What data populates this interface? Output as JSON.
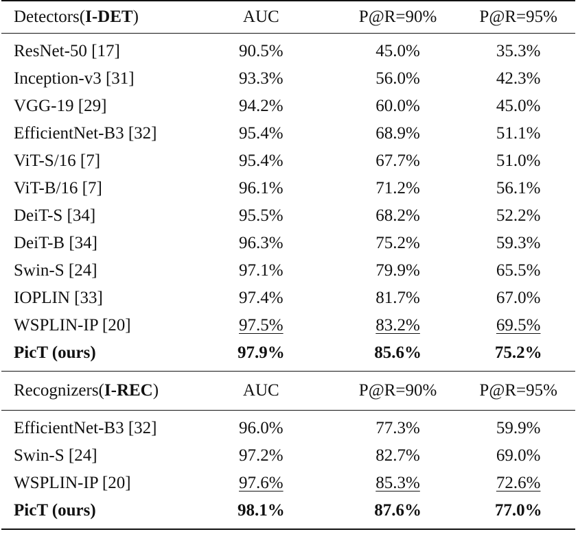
{
  "det": {
    "header": {
      "name_prefix": "Detectors(",
      "name_bold": "I-DET",
      "name_suffix": ")",
      "auc": "AUC",
      "p90": "P@R=90%",
      "p95": "P@R=95%"
    },
    "rows": [
      {
        "name": "ResNet-50 [17]",
        "auc": "90.5%",
        "p90": "45.0%",
        "p95": "35.3%"
      },
      {
        "name": "Inception-v3 [31]",
        "auc": "93.3%",
        "p90": "56.0%",
        "p95": "42.3%"
      },
      {
        "name": "VGG-19 [29]",
        "auc": "94.2%",
        "p90": "60.0%",
        "p95": "45.0%"
      },
      {
        "name": "EfficientNet-B3 [32]",
        "auc": "95.4%",
        "p90": "68.9%",
        "p95": "51.1%"
      },
      {
        "name": "ViT-S/16 [7]",
        "auc": "95.4%",
        "p90": "67.7%",
        "p95": "51.0%"
      },
      {
        "name": "ViT-B/16 [7]",
        "auc": "96.1%",
        "p90": "71.2%",
        "p95": "56.1%"
      },
      {
        "name": "DeiT-S [34]",
        "auc": "95.5%",
        "p90": "68.2%",
        "p95": "52.2%"
      },
      {
        "name": "DeiT-B [34]",
        "auc": "96.3%",
        "p90": "75.2%",
        "p95": "59.3%"
      },
      {
        "name": "Swin-S [24]",
        "auc": "97.1%",
        "p90": "79.9%",
        "p95": "65.5%"
      },
      {
        "name": "IOPLIN [33]",
        "auc": "97.4%",
        "p90": "81.7%",
        "p95": "67.0%"
      },
      {
        "name": "WSPLIN-IP [20]",
        "auc": "97.5%",
        "p90": "83.2%",
        "p95": "69.5%"
      },
      {
        "name": "PicT (ours)",
        "auc": "97.9%",
        "p90": "85.6%",
        "p95": "75.2%"
      }
    ]
  },
  "rec": {
    "header": {
      "name_prefix": "Recognizers(",
      "name_bold": "I-REC",
      "name_suffix": ")",
      "auc": "AUC",
      "p90": "P@R=90%",
      "p95": "P@R=95%"
    },
    "rows": [
      {
        "name": "EfficientNet-B3 [32]",
        "auc": "96.0%",
        "p90": "77.3%",
        "p95": "59.9%"
      },
      {
        "name": "Swin-S [24]",
        "auc": "97.2%",
        "p90": "82.7%",
        "p95": "69.0%"
      },
      {
        "name": "WSPLIN-IP [20]",
        "auc": "97.6%",
        "p90": "85.3%",
        "p95": "72.6%"
      },
      {
        "name": "PicT (ours)",
        "auc": "98.1%",
        "p90": "87.6%",
        "p95": "77.0%"
      }
    ]
  }
}
